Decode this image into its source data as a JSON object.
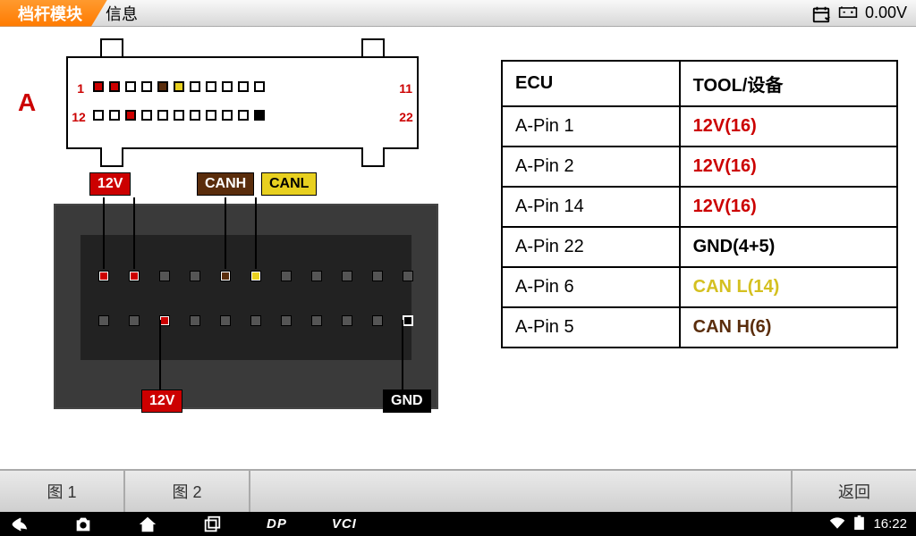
{
  "topbar": {
    "tab_active": "档杆模块",
    "tab_next": "信息",
    "voltage": "0.00V"
  },
  "schematic": {
    "label": "A",
    "row1_start": "1",
    "row1_end": "11",
    "row2_start": "12",
    "row2_end": "22",
    "pins_row1": [
      {
        "color": "#c00"
      },
      {
        "color": "#c00"
      },
      {
        "color": "#fff"
      },
      {
        "color": "#fff"
      },
      {
        "color": "#5a2d0c"
      },
      {
        "color": "#e8d020"
      },
      {
        "color": "#fff"
      },
      {
        "color": "#fff"
      },
      {
        "color": "#fff"
      },
      {
        "color": "#fff"
      },
      {
        "color": "#fff"
      }
    ],
    "pins_row2": [
      {
        "color": "#fff"
      },
      {
        "color": "#fff"
      },
      {
        "color": "#c00"
      },
      {
        "color": "#fff"
      },
      {
        "color": "#fff"
      },
      {
        "color": "#fff"
      },
      {
        "color": "#fff"
      },
      {
        "color": "#fff"
      },
      {
        "color": "#fff"
      },
      {
        "color": "#fff"
      },
      {
        "color": "#000"
      }
    ]
  },
  "callouts": {
    "c1": "12V",
    "c2": "CANH",
    "c3": "CANL",
    "c4": "12V",
    "c5": "GND"
  },
  "table": {
    "h1": "ECU",
    "h2": "TOOL/设备",
    "rows": [
      {
        "pin": "A-Pin 1",
        "val": "12V(16)",
        "cls": "cell-red"
      },
      {
        "pin": "A-Pin 2",
        "val": "12V(16)",
        "cls": "cell-red"
      },
      {
        "pin": "A-Pin 14",
        "val": "12V(16)",
        "cls": "cell-red"
      },
      {
        "pin": "A-Pin 22",
        "val": "GND(4+5)",
        "cls": "cell-gnd"
      },
      {
        "pin": "A-Pin 6",
        "val": "CAN L(14)",
        "cls": "cell-yellow"
      },
      {
        "pin": "A-Pin 5",
        "val": "CAN H(6)",
        "cls": "cell-brown"
      }
    ]
  },
  "buttons": {
    "fig1": "图 1",
    "fig2": "图 2",
    "back": "返回"
  },
  "navbar": {
    "dp": "DP",
    "vci": "VCI",
    "time": "16:22"
  }
}
